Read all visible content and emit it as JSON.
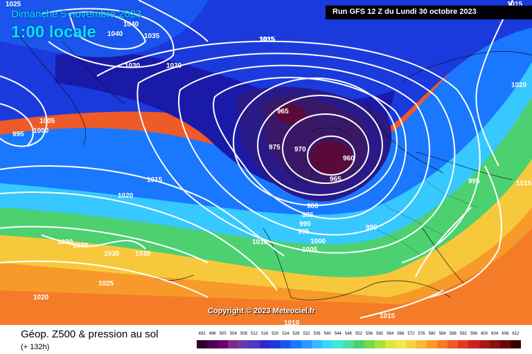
{
  "header": {
    "date": "Dimanche 5 novembre 2023",
    "time": "1:00 locale",
    "run": "Run GFS 12 Z du Lundi 30 octobre 2023"
  },
  "map": {
    "copyright": "Copyright © 2023 Meteociel.fr",
    "pressure_labels": [
      "1025",
      "1015",
      "1040",
      "1040",
      "1035",
      "1030",
      "1015",
      "1020",
      "1015",
      "1020",
      "1005",
      "1000",
      "995",
      "965",
      "975",
      "970",
      "960",
      "965",
      "1015",
      "1020",
      "980",
      "985",
      "990",
      "995",
      "1000",
      "1005",
      "1010",
      "990",
      "995",
      "1015",
      "1030",
      "1030",
      "1030",
      "1030",
      "1025",
      "1020",
      "1010",
      "1015"
    ],
    "colors": {
      "deep_low": "#5a0a3a",
      "low": "#0a1a8c",
      "mid_blue": "#1e6cff",
      "cyan": "#36d8ff",
      "green": "#4bd07a",
      "yellow": "#f5e84a",
      "orange": "#f79a2a",
      "red": "#ee4a2a",
      "isobar": "#ffffff"
    }
  },
  "footer": {
    "title": "Géop. Z500 & pression au sol",
    "subtitle": "(+ 132h)",
    "scale_labels": [
      "492",
      "496",
      "500",
      "504",
      "508",
      "512",
      "516",
      "520",
      "524",
      "528",
      "532",
      "536",
      "540",
      "544",
      "548",
      "552",
      "556",
      "560",
      "564",
      "568",
      "572",
      "576",
      "580",
      "584",
      "588",
      "592",
      "596",
      "600",
      "604",
      "608",
      "612"
    ],
    "scale_colors": [
      "#300030",
      "#500050",
      "#6a006a",
      "#7a2a8a",
      "#6a3aaa",
      "#4a3ac0",
      "#2a2acc",
      "#1a3ade",
      "#1a56ee",
      "#1a78ff",
      "#2a98ff",
      "#36b8ff",
      "#36d8ff",
      "#40e8d8",
      "#48e0a0",
      "#4cd070",
      "#7ad84a",
      "#a8e040",
      "#d8e840",
      "#f5e84a",
      "#f8d040",
      "#f8b838",
      "#f79a2a",
      "#f47c28",
      "#ee5a28",
      "#e43a22",
      "#cc2020",
      "#aa1818",
      "#881010",
      "#660808",
      "#3a0000"
    ]
  }
}
